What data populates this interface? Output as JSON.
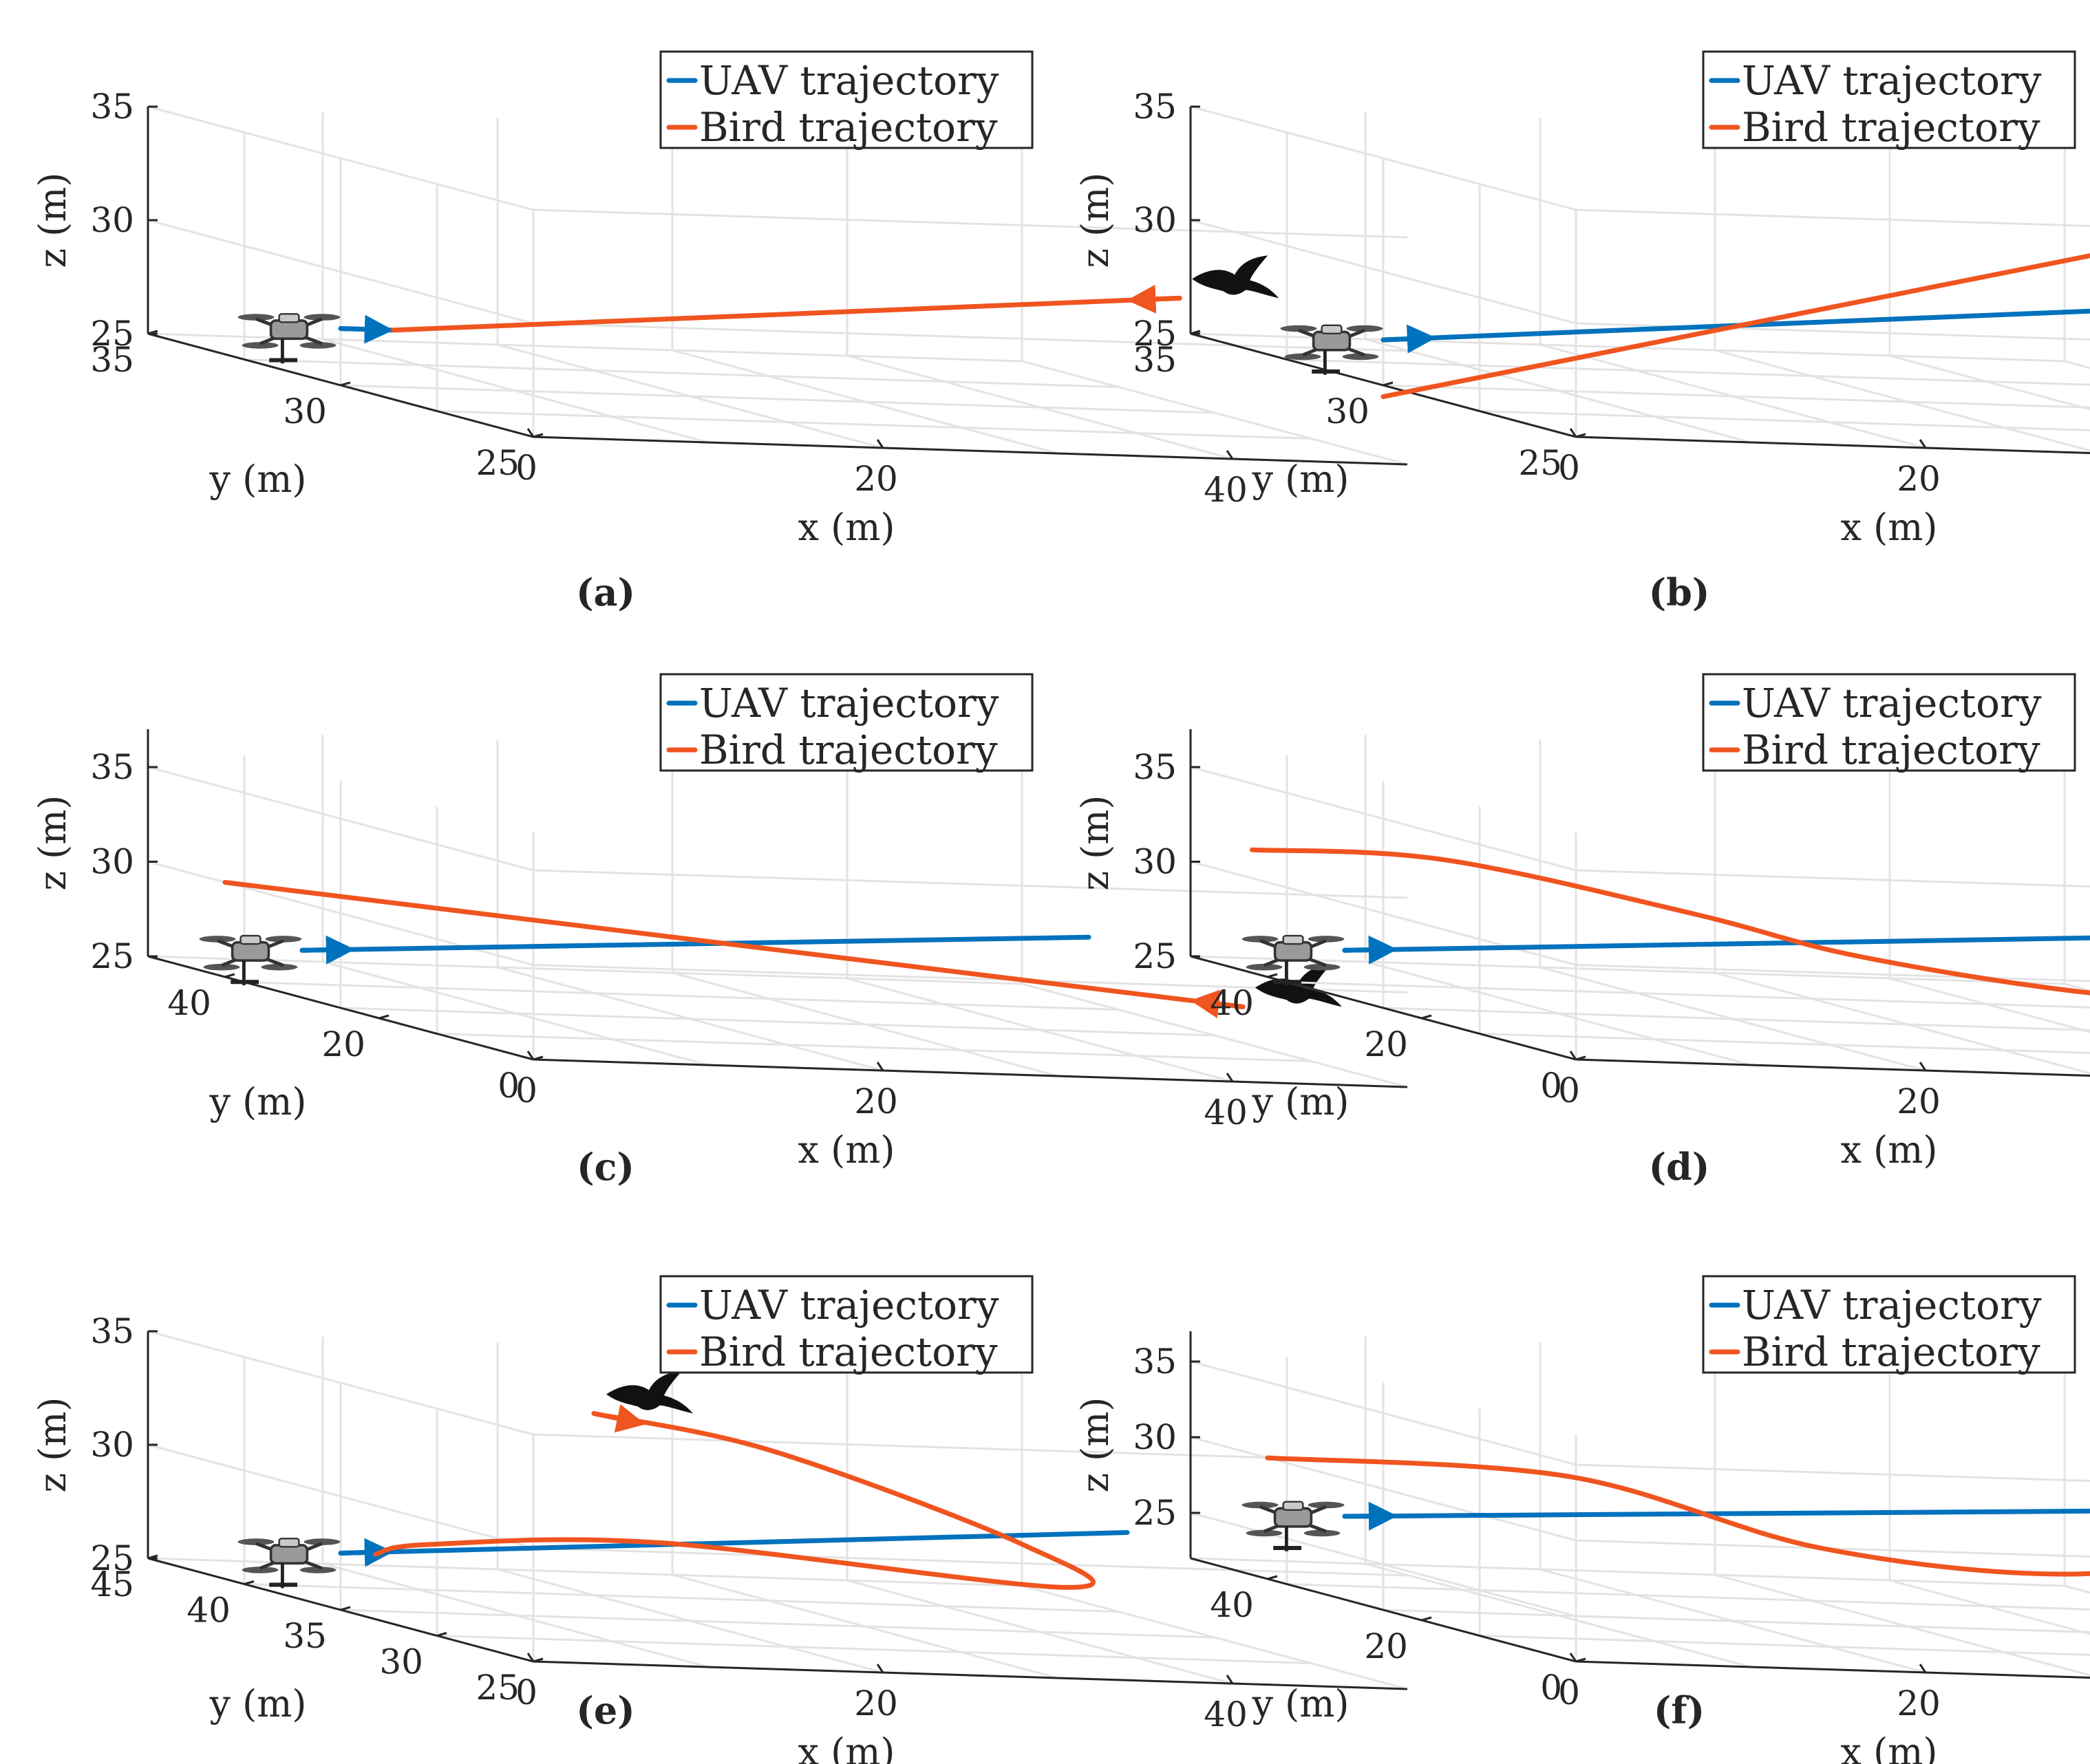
{
  "colors": {
    "uav": "#0072bd",
    "bird": "#f0541f",
    "axis": "#262626",
    "grid": "#e3e3e3"
  },
  "icons": {
    "uav": "quadcopter-drone-icon",
    "bird": "bird-silhouette-icon"
  },
  "chart_data": [
    {
      "type": "line",
      "caption": "(a)",
      "xlabel": "x (m)",
      "ylabel": "y (m)",
      "zlabel": "z (m)",
      "xlim": [
        0,
        50
      ],
      "ylim": [
        25,
        35
      ],
      "zlim": [
        25,
        35
      ],
      "xticks": [
        0,
        20,
        40
      ],
      "yticks": [
        25,
        30,
        35
      ],
      "zticks": [
        25,
        30,
        35
      ],
      "legend": {
        "position": "top-right",
        "entries": [
          "UAV trajectory",
          "Bird trajectory"
        ]
      },
      "series": [
        {
          "name": "UAV trajectory",
          "points": [
            [
              0,
              30,
              27.5
            ],
            [
              3,
              30,
              27.5
            ]
          ]
        },
        {
          "name": "Bird trajectory",
          "points": [
            [
              48,
              30,
              30
            ],
            [
              3,
              30,
              27.5
            ]
          ]
        }
      ]
    },
    {
      "type": "line",
      "caption": "(b)",
      "xlabel": "x (m)",
      "ylabel": "y (m)",
      "zlabel": "z (m)",
      "xlim": [
        0,
        50
      ],
      "ylim": [
        25,
        35
      ],
      "zlim": [
        25,
        35
      ],
      "xticks": [
        0,
        20,
        40
      ],
      "yticks": [
        25,
        30,
        35
      ],
      "zticks": [
        25,
        30,
        35
      ],
      "legend": {
        "position": "top-right",
        "entries": [
          "UAV trajectory",
          "Bird trajectory"
        ]
      },
      "series": [
        {
          "name": "UAV trajectory",
          "points": [
            [
              0,
              30,
              27
            ],
            [
              45,
              30,
              29.5
            ]
          ]
        },
        {
          "name": "Bird trajectory",
          "points": [
            [
              45,
              30,
              32.5
            ],
            [
              0,
              30,
              24.5
            ]
          ]
        }
      ]
    },
    {
      "type": "line",
      "caption": "(c)",
      "xlabel": "x (m)",
      "ylabel": "y (m)",
      "zlabel": "z (m)",
      "xlim": [
        0,
        50
      ],
      "ylim": [
        0,
        50
      ],
      "zlim": [
        25,
        37
      ],
      "xticks": [
        0,
        20,
        40
      ],
      "yticks": [
        0,
        20,
        40
      ],
      "zticks": [
        25,
        30,
        35
      ],
      "legend": {
        "position": "top-right",
        "entries": [
          "UAV trajectory",
          "Bird trajectory"
        ]
      },
      "series": [
        {
          "name": "UAV trajectory",
          "points": [
            [
              0,
              30,
              27.5
            ],
            [
              45,
              30,
              29.5
            ]
          ]
        },
        {
          "name": "Bird trajectory",
          "points": [
            [
              45,
              10,
              28
            ],
            [
              0,
              40,
              30
            ]
          ]
        }
      ]
    },
    {
      "type": "line",
      "caption": "(d)",
      "xlabel": "x (m)",
      "ylabel": "y (m)",
      "zlabel": "z (m)",
      "xlim": [
        0,
        50
      ],
      "ylim": [
        0,
        50
      ],
      "zlim": [
        25,
        37
      ],
      "xticks": [
        0,
        20,
        40
      ],
      "yticks": [
        0,
        20,
        40
      ],
      "zticks": [
        25,
        30,
        35
      ],
      "legend": {
        "position": "top-right",
        "entries": [
          "UAV trajectory",
          "Bird trajectory"
        ]
      },
      "series": [
        {
          "name": "UAV trajectory",
          "points": [
            [
              0,
              30,
              27.5
            ],
            [
              45,
              30,
              29.5
            ]
          ]
        },
        {
          "name": "Bird trajectory",
          "points": [
            [
              48,
              10,
              28
            ],
            [
              35,
              12,
              28.2
            ],
            [
              25,
              20,
              29
            ],
            [
              20,
              30,
              30
            ],
            [
              10,
              40,
              31.5
            ],
            [
              0,
              42,
              31.5
            ]
          ]
        }
      ]
    },
    {
      "type": "line",
      "caption": "(e)",
      "xlabel": "x (m)",
      "ylabel": "y (m)",
      "zlabel": "z (m)",
      "xlim": [
        0,
        50
      ],
      "ylim": [
        25,
        45
      ],
      "zlim": [
        25,
        35
      ],
      "xticks": [
        0,
        20,
        40
      ],
      "yticks": [
        25,
        30,
        35,
        40,
        45
      ],
      "zticks": [
        25,
        30,
        35
      ],
      "legend": {
        "position": "top-right",
        "entries": [
          "UAV trajectory",
          "Bird trajectory"
        ]
      },
      "series": [
        {
          "name": "UAV trajectory",
          "points": [
            [
              0,
              35,
              27.5
            ],
            [
              45,
              35,
              29.5
            ]
          ]
        },
        {
          "name": "Bird trajectory",
          "points": [
            [
              20,
              40,
              33
            ],
            [
              28,
              38,
              32
            ],
            [
              38,
              34,
              29
            ],
            [
              36,
              30,
              28
            ],
            [
              15,
              32,
              29
            ],
            [
              5,
              35,
              28
            ],
            [
              2,
              35,
              27.5
            ]
          ]
        }
      ]
    },
    {
      "type": "line",
      "caption": "(f)",
      "xlabel": "x (m)",
      "ylabel": "y (m)",
      "zlabel": "z (m)",
      "xlim": [
        0,
        50
      ],
      "ylim": [
        0,
        50
      ],
      "zlim": [
        22,
        37
      ],
      "xticks": [
        0,
        20,
        40
      ],
      "yticks": [
        0,
        20,
        40
      ],
      "zticks": [
        25,
        30,
        35
      ],
      "legend": {
        "position": "top-right",
        "entries": [
          "UAV trajectory",
          "Bird trajectory"
        ]
      },
      "series": [
        {
          "name": "UAV trajectory",
          "points": [
            [
              0,
              30,
              27.5
            ],
            [
              45,
              30,
              29.5
            ]
          ]
        },
        {
          "name": "Bird trajectory",
          "points": [
            [
              45,
              10,
              30
            ],
            [
              35,
              15,
              27
            ],
            [
              25,
              25,
              27
            ],
            [
              15,
              35,
              30
            ],
            [
              0,
              40,
              30
            ]
          ]
        }
      ]
    }
  ]
}
